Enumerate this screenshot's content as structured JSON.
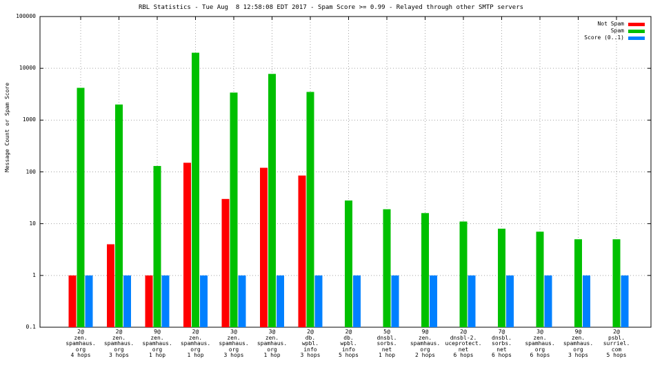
{
  "chart_data": {
    "type": "bar",
    "title": "RBL Statistics - Tue Aug  8 12:58:08 EDT 2017 - Spam Score >= 0.99 - Relayed through other SMTP servers",
    "xlabel": "",
    "ylabel": "Message Count or Spam Score",
    "yscale": "log",
    "ylim": [
      0.1,
      100000
    ],
    "yticks": [
      "0.1",
      "1",
      "10",
      "100",
      "1000",
      "10000",
      "100000"
    ],
    "grid": true,
    "legend_position": "top-right",
    "categories": [
      [
        "2@",
        "zen.",
        "spamhaus.",
        "org",
        "4 hops"
      ],
      [
        "2@",
        "zen.",
        "spamhaus.",
        "org",
        "3 hops"
      ],
      [
        "9@",
        "zen.",
        "spamhaus.",
        "org",
        "1 hop"
      ],
      [
        "2@",
        "zen.",
        "spamhaus.",
        "org",
        "1 hop"
      ],
      [
        "3@",
        "zen.",
        "spamhaus.",
        "org",
        "3 hops"
      ],
      [
        "3@",
        "zen.",
        "spamhaus.",
        "org",
        "1 hop"
      ],
      [
        "2@",
        "db.",
        "wpbl.",
        "info",
        "3 hops"
      ],
      [
        "2@",
        "db.",
        "wpbl.",
        "info",
        "5 hops"
      ],
      [
        "5@",
        "dnsbl.",
        "sorbs.",
        "net",
        "1 hop"
      ],
      [
        "9@",
        "zen.",
        "spamhaus.",
        "org",
        "2 hops"
      ],
      [
        "2@",
        "dnsbl-2.",
        "uceprotect.",
        "net",
        "6 hops"
      ],
      [
        "7@",
        "dnsbl.",
        "sorbs.",
        "net",
        "6 hops"
      ],
      [
        "3@",
        "zen.",
        "spamhaus.",
        "org",
        "6 hops"
      ],
      [
        "9@",
        "zen.",
        "spamhaus.",
        "org",
        "3 hops"
      ],
      [
        "2@",
        "psbl.",
        "surriel.",
        "com",
        "5 hops"
      ]
    ],
    "series": [
      {
        "name": "Not Spam",
        "color": "#ff0000",
        "values": [
          1,
          4,
          1,
          150,
          30,
          120,
          85,
          null,
          null,
          null,
          null,
          null,
          null,
          null,
          null
        ]
      },
      {
        "name": "Spam",
        "color": "#00c000",
        "values": [
          4200,
          2000,
          130,
          20000,
          3400,
          7800,
          3500,
          28,
          19,
          16,
          11,
          8,
          7,
          5,
          5
        ]
      },
      {
        "name": "Score (0..1)",
        "color": "#0080ff",
        "values": [
          1,
          1,
          1,
          1,
          1,
          1,
          1,
          1,
          1,
          1,
          1,
          1,
          1,
          1,
          1
        ]
      }
    ]
  }
}
